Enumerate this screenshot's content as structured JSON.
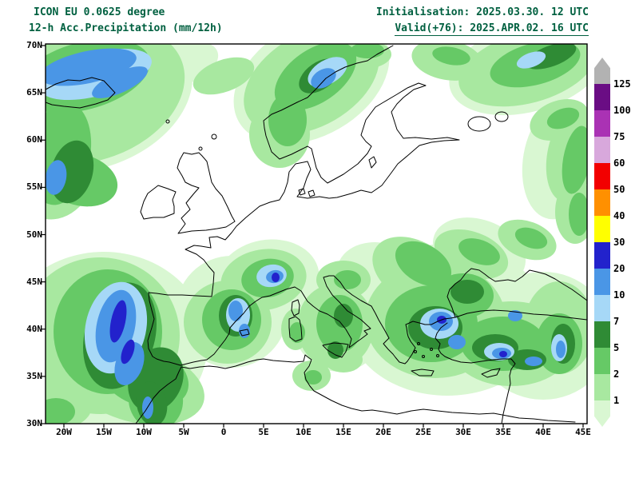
{
  "header": {
    "model": "ICON EU 0.0625 degree",
    "product": "12-h Acc.Precipitation (mm/12h)",
    "initialisation": "Initialisation: 2025.03.30. 12 UTC",
    "valid": "Valid(+76): 2025.APR.02. 16 UTC",
    "text_color": "#006040"
  },
  "map": {
    "lat_labels": [
      "70N",
      "65N",
      "60N",
      "55N",
      "50N",
      "45N",
      "40N",
      "35N",
      "30N"
    ],
    "lon_labels": [
      "20W",
      "15W",
      "10W",
      "5W",
      "0",
      "5E",
      "10E",
      "15E",
      "20E",
      "25E",
      "30E",
      "35E",
      "40E",
      "45E"
    ]
  },
  "legend": {
    "boundary_labels": [
      "125",
      "100",
      "75",
      "60",
      "50",
      "40",
      "30",
      "20",
      "10",
      "7",
      "5",
      "2",
      "1"
    ],
    "colors_top_to_bottom": [
      "#b2b2b2",
      "#6a0d84",
      "#aa32b4",
      "#d8a8dc",
      "#f20000",
      "#ff9000",
      "#ffff00",
      "#2222cc",
      "#4a96e6",
      "#a6d8f7",
      "#2f8b35",
      "#66c966",
      "#a8e8a0",
      "#d9f7d2"
    ]
  }
}
